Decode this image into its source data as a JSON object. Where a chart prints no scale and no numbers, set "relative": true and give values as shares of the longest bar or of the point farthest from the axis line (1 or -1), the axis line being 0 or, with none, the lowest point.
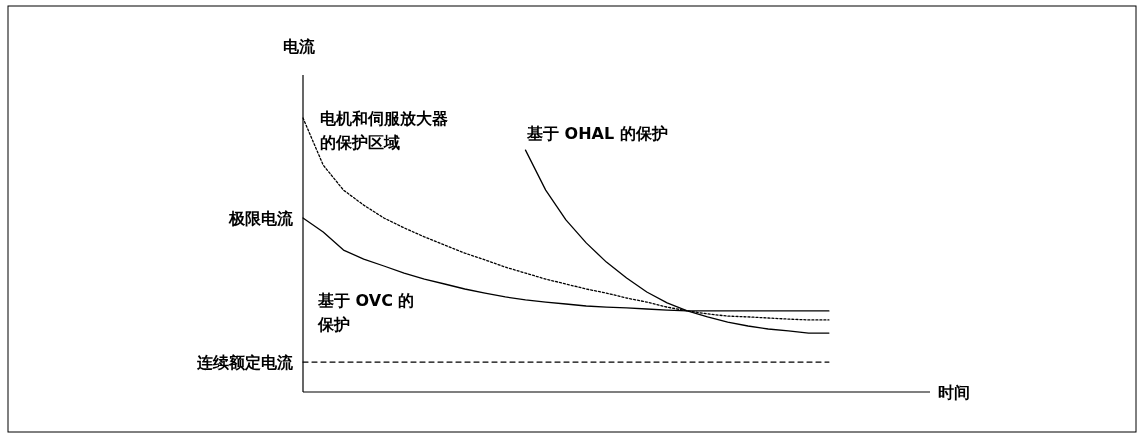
{
  "chart_data": {
    "type": "line",
    "relative": true,
    "xlabel": "时间",
    "ylabel": "电流",
    "legend": false,
    "categories": [
      null,
      null,
      null,
      null,
      null,
      null,
      null,
      null,
      null,
      null,
      null,
      null,
      null,
      null,
      null,
      null,
      null,
      null,
      null,
      null,
      null,
      null,
      null,
      null,
      null,
      null,
      null,
      null,
      null,
      null,
      null,
      null
    ],
    "series": [
      {
        "name": "电机和伺服放大器的保护区域",
        "color": "#000000",
        "line_style": "dotted",
        "values": [
          1.0,
          0.828,
          0.737,
          0.682,
          0.635,
          0.599,
          0.566,
          0.536,
          0.507,
          0.482,
          0.456,
          0.434,
          0.412,
          0.394,
          0.376,
          0.361,
          0.343,
          0.328,
          0.31,
          0.296,
          0.285,
          0.277,
          0.274,
          0.27,
          0.266,
          0.263,
          0.263,
          null,
          null,
          null,
          null,
          null
        ]
      },
      {
        "name": "基于 OHAL 的保护",
        "color": "#000000",
        "line_style": "solid",
        "values": [
          null,
          null,
          null,
          null,
          null,
          null,
          null,
          null,
          null,
          null,
          null,
          0.883,
          0.737,
          0.628,
          0.544,
          0.474,
          0.416,
          0.365,
          0.325,
          0.296,
          0.274,
          0.255,
          0.241,
          0.23,
          0.223,
          0.215,
          0.215,
          null,
          null,
          null,
          null,
          null
        ]
      },
      {
        "name": "基于 OVC 的保护",
        "color": "#000000",
        "line_style": "solid",
        "values": [
          0.635,
          0.584,
          0.518,
          0.485,
          0.46,
          0.434,
          0.412,
          0.394,
          0.376,
          0.361,
          0.347,
          0.336,
          0.328,
          0.321,
          0.314,
          0.31,
          0.307,
          0.303,
          0.299,
          0.296,
          0.296,
          0.296,
          0.296,
          0.296,
          0.296,
          0.296,
          0.296,
          null,
          null,
          null,
          null,
          null
        ]
      },
      {
        "name": "连续额定电流",
        "color": "#000000",
        "line_style": "dashed",
        "values": [
          0.109,
          0.109,
          0.109,
          0.109,
          0.109,
          0.109,
          0.109,
          0.109,
          0.109,
          0.109,
          0.109,
          0.109,
          0.109,
          0.109,
          0.109,
          0.109,
          0.109,
          0.109,
          0.109,
          0.109,
          0.109,
          0.109,
          0.109,
          0.109,
          0.109,
          0.109,
          0.109,
          null,
          null,
          null,
          null,
          null
        ]
      }
    ],
    "annotations": [
      "极限电流"
    ]
  }
}
